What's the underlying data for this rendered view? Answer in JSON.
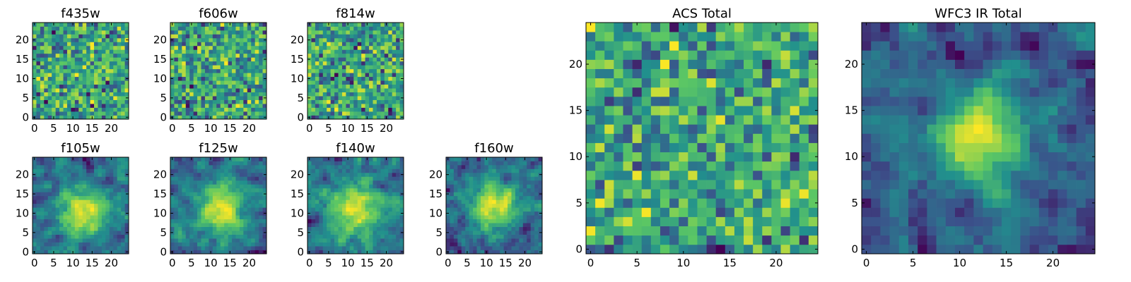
{
  "colors": {
    "colormap": "viridis",
    "viridis_stops": [
      "#440154",
      "#3b528b",
      "#21908d",
      "#5dc863",
      "#fde725"
    ],
    "axes_frame": "#000000",
    "background": "#ffffff"
  },
  "chart_data": [
    {
      "type": "heatmap",
      "title": "f435w",
      "xlabel": "",
      "ylabel": "",
      "grid_size": 25,
      "xlim": [
        0,
        24
      ],
      "ylim": [
        0,
        24
      ],
      "xticks": [
        0,
        5,
        10,
        15,
        20
      ],
      "yticks": [
        0,
        5,
        10,
        15,
        20
      ],
      "grid": false,
      "colormap": "viridis",
      "seed": 11,
      "smooth": 0,
      "noise": 1.0,
      "hotspot": null
    },
    {
      "type": "heatmap",
      "title": "f606w",
      "xlabel": "",
      "ylabel": "",
      "grid_size": 25,
      "xlim": [
        0,
        24
      ],
      "ylim": [
        0,
        24
      ],
      "xticks": [
        0,
        5,
        10,
        15,
        20
      ],
      "yticks": [
        0,
        5,
        10,
        15,
        20
      ],
      "grid": false,
      "colormap": "viridis",
      "seed": 23,
      "smooth": 0,
      "noise": 1.0,
      "hotspot": null
    },
    {
      "type": "heatmap",
      "title": "f814w",
      "xlabel": "",
      "ylabel": "",
      "grid_size": 25,
      "xlim": [
        0,
        24
      ],
      "ylim": [
        0,
        24
      ],
      "xticks": [
        0,
        5,
        10,
        15,
        20
      ],
      "yticks": [
        0,
        5,
        10,
        15,
        20
      ],
      "grid": false,
      "colormap": "viridis",
      "seed": 37,
      "smooth": 0,
      "noise": 1.0,
      "hotspot": null
    },
    {
      "type": "heatmap",
      "title": "f105w",
      "xlabel": "",
      "ylabel": "",
      "grid_size": 25,
      "xlim": [
        0,
        24
      ],
      "ylim": [
        0,
        24
      ],
      "xticks": [
        0,
        5,
        10,
        15,
        20
      ],
      "yticks": [
        0,
        5,
        10,
        15,
        20
      ],
      "grid": false,
      "colormap": "viridis",
      "seed": 41,
      "smooth": 1,
      "noise": 0.8,
      "hotspot": {
        "x": 13,
        "y": 10,
        "sigma": 4.5,
        "amp": 0.55
      }
    },
    {
      "type": "heatmap",
      "title": "f125w",
      "xlabel": "",
      "ylabel": "",
      "grid_size": 25,
      "xlim": [
        0,
        24
      ],
      "ylim": [
        0,
        24
      ],
      "xticks": [
        0,
        5,
        10,
        15,
        20
      ],
      "yticks": [
        0,
        5,
        10,
        15,
        20
      ],
      "grid": false,
      "colormap": "viridis",
      "seed": 53,
      "smooth": 1,
      "noise": 0.8,
      "hotspot": {
        "x": 13,
        "y": 11,
        "sigma": 4.5,
        "amp": 0.6
      }
    },
    {
      "type": "heatmap",
      "title": "f140w",
      "xlabel": "",
      "ylabel": "",
      "grid_size": 25,
      "xlim": [
        0,
        24
      ],
      "ylim": [
        0,
        24
      ],
      "xticks": [
        0,
        5,
        10,
        15,
        20
      ],
      "yticks": [
        0,
        5,
        10,
        15,
        20
      ],
      "grid": false,
      "colormap": "viridis",
      "seed": 67,
      "smooth": 1,
      "noise": 0.8,
      "hotspot": {
        "x": 12,
        "y": 11,
        "sigma": 4.5,
        "amp": 0.55
      }
    },
    {
      "type": "heatmap",
      "title": "f160w",
      "xlabel": "",
      "ylabel": "",
      "grid_size": 25,
      "xlim": [
        0,
        24
      ],
      "ylim": [
        0,
        24
      ],
      "xticks": [
        0,
        5,
        10,
        15,
        20
      ],
      "yticks": [
        0,
        5,
        10,
        15,
        20
      ],
      "grid": false,
      "colormap": "viridis",
      "seed": 79,
      "smooth": 1,
      "noise": 0.8,
      "hotspot": {
        "x": 12,
        "y": 12,
        "sigma": 4,
        "amp": 0.6
      }
    },
    {
      "type": "heatmap",
      "title": "ACS Total",
      "xlabel": "",
      "ylabel": "",
      "grid_size": 25,
      "xlim": [
        0,
        24
      ],
      "ylim": [
        0,
        24
      ],
      "xticks": [
        0,
        5,
        10,
        15,
        20
      ],
      "yticks": [
        0,
        5,
        10,
        15,
        20
      ],
      "grid": false,
      "colormap": "viridis",
      "seed": 97,
      "smooth": 0,
      "noise": 1.0,
      "hotspot": null
    },
    {
      "type": "heatmap",
      "title": "WFC3 IR Total",
      "xlabel": "",
      "ylabel": "",
      "grid_size": 25,
      "xlim": [
        0,
        24
      ],
      "ylim": [
        0,
        24
      ],
      "xticks": [
        0,
        5,
        10,
        15,
        20
      ],
      "yticks": [
        0,
        5,
        10,
        15,
        20
      ],
      "grid": false,
      "colormap": "viridis",
      "seed": 101,
      "smooth": 1,
      "noise": 0.7,
      "hotspot": {
        "x": 12,
        "y": 12,
        "sigma": 3.5,
        "amp": 0.7
      }
    }
  ]
}
